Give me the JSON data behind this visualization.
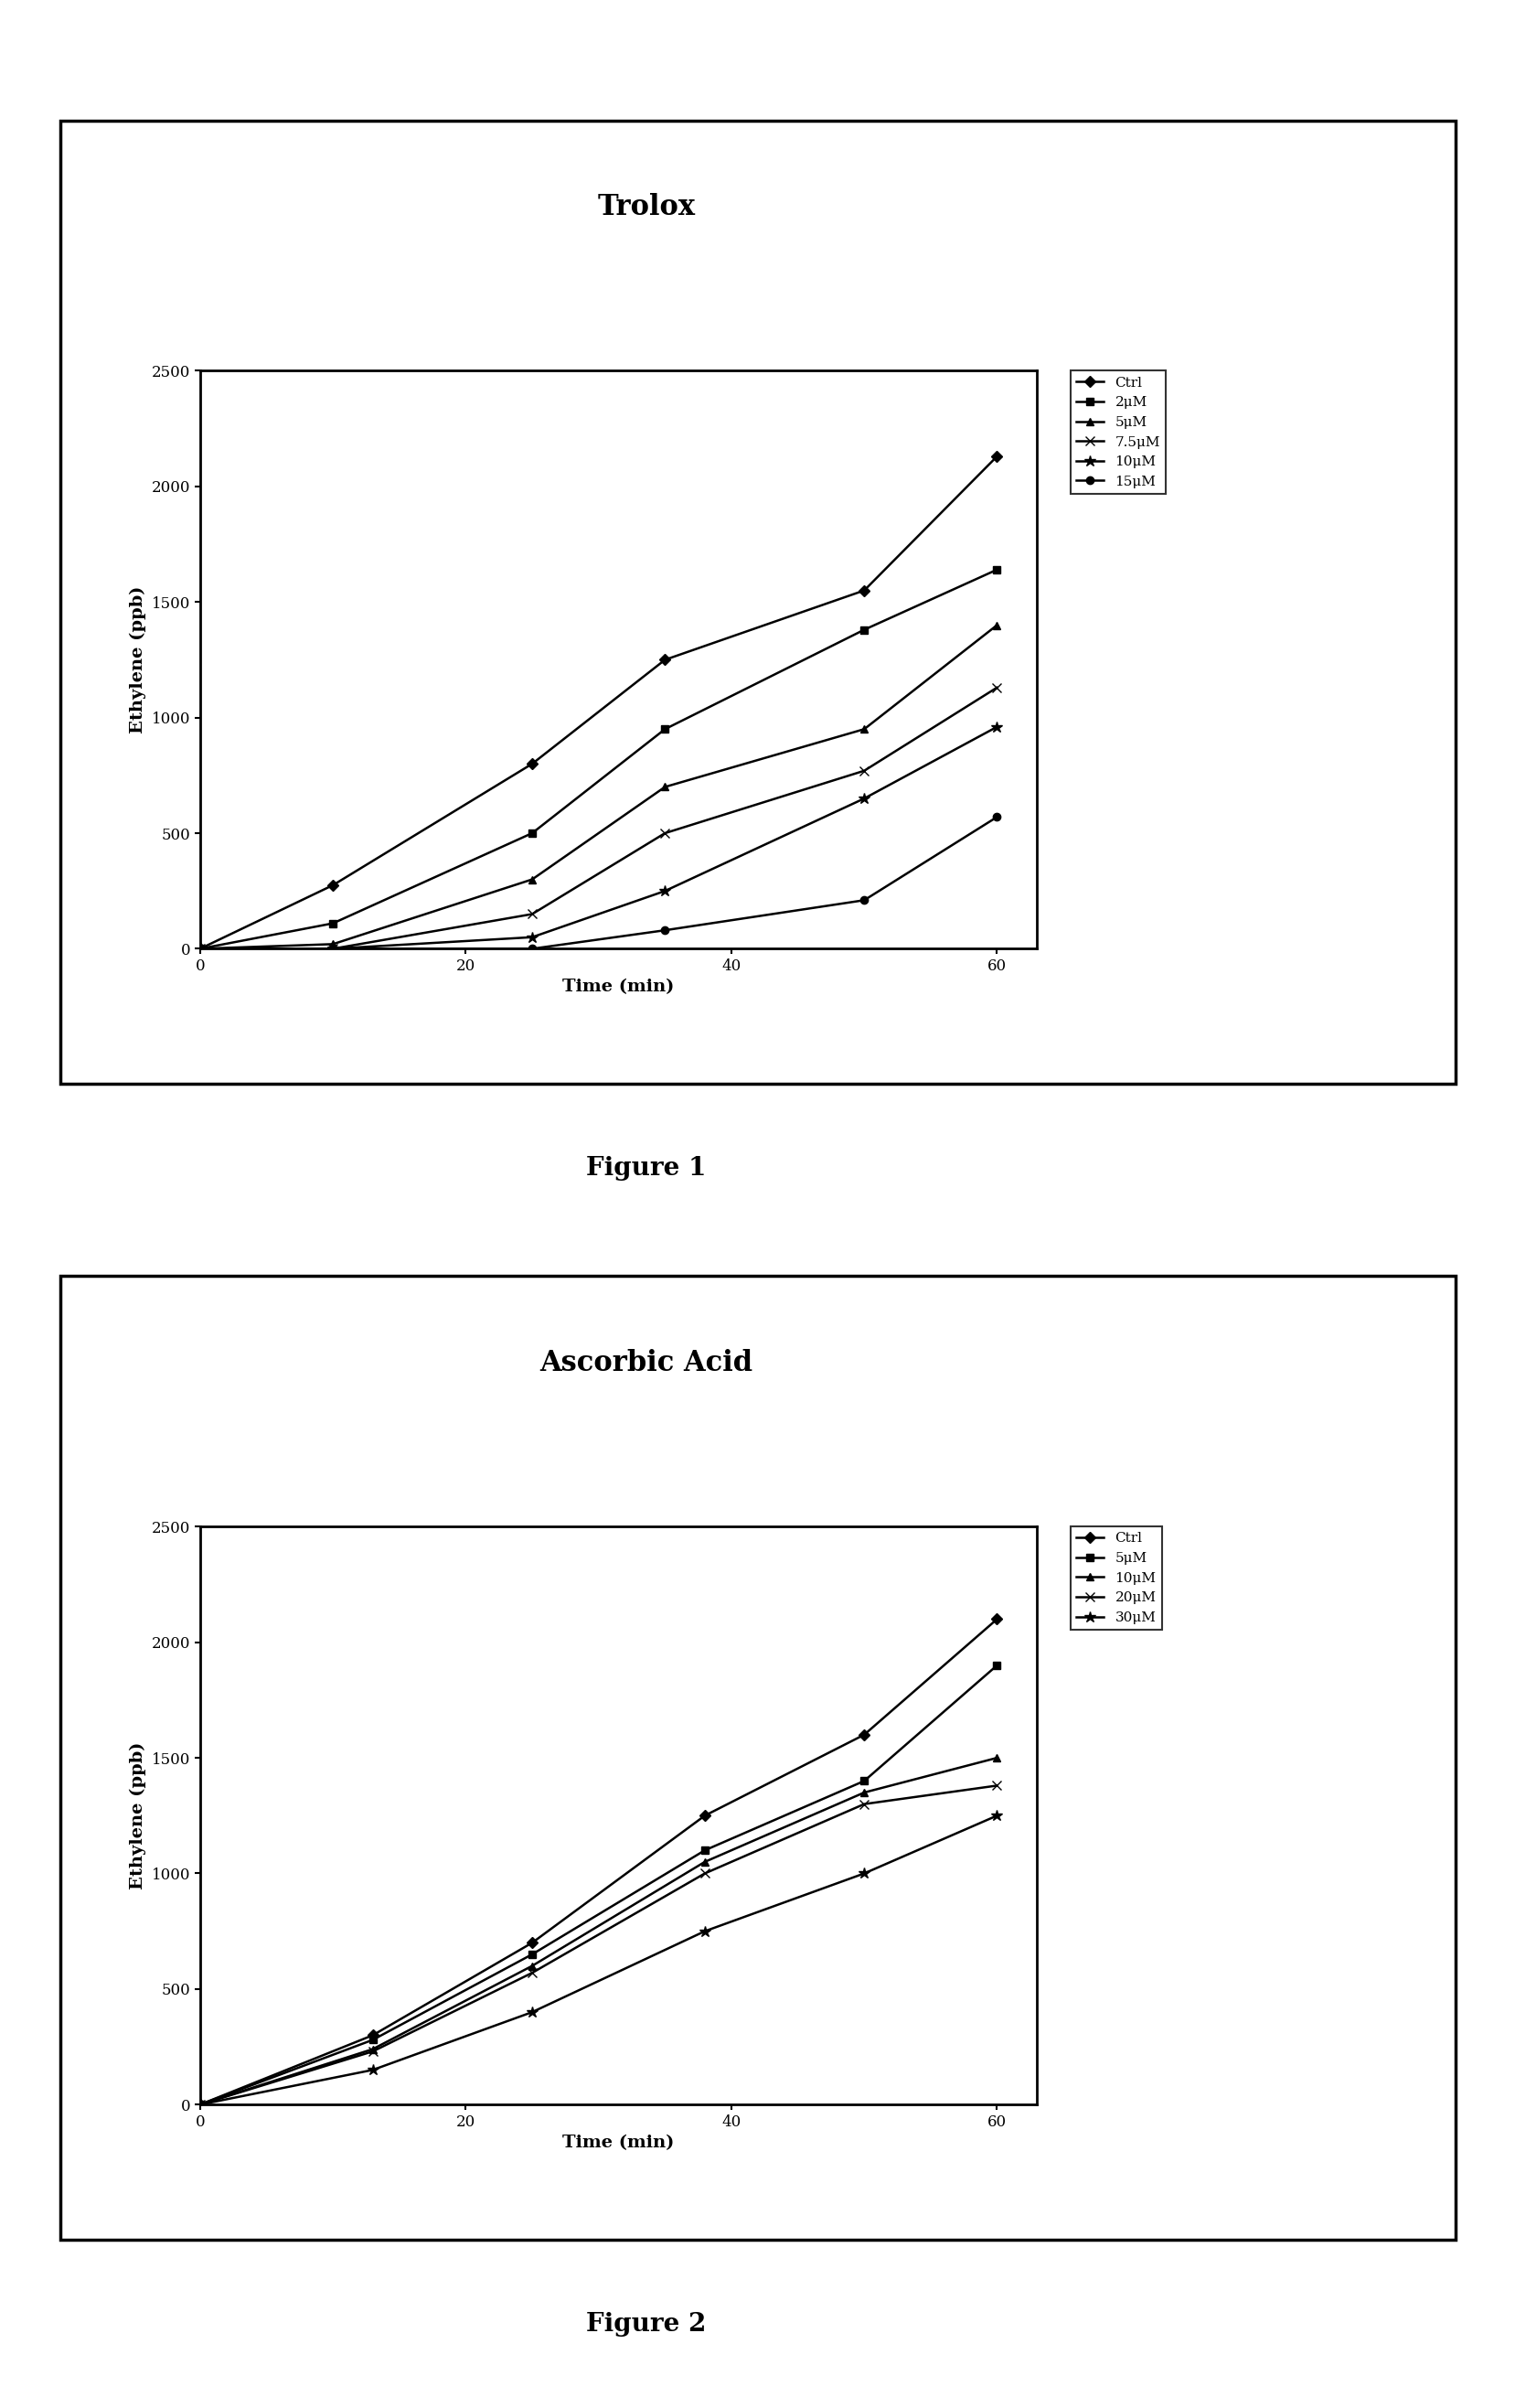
{
  "fig1": {
    "title": "Trolox",
    "xlabel": "Time (min)",
    "ylabel": "Ethylene (ppb)",
    "xlim": [
      0,
      63
    ],
    "ylim": [
      0,
      2500
    ],
    "xticks": [
      0,
      20,
      40,
      60
    ],
    "yticks": [
      0,
      500,
      1000,
      1500,
      2000,
      2500
    ],
    "series": [
      {
        "label": "Ctrl",
        "x": [
          0,
          10,
          25,
          35,
          50,
          60
        ],
        "y": [
          0,
          275,
          800,
          1250,
          1550,
          2130
        ],
        "marker": "D",
        "linestyle": "-",
        "color": "#000000",
        "markersize": 6
      },
      {
        "label": "2μM",
        "x": [
          0,
          10,
          25,
          35,
          50,
          60
        ],
        "y": [
          0,
          110,
          500,
          950,
          1380,
          1640
        ],
        "marker": "s",
        "linestyle": "-",
        "color": "#000000",
        "markersize": 6
      },
      {
        "label": "5μM",
        "x": [
          0,
          10,
          25,
          35,
          50,
          60
        ],
        "y": [
          0,
          20,
          300,
          700,
          950,
          1400
        ],
        "marker": "^",
        "linestyle": "-",
        "color": "#000000",
        "markersize": 6
      },
      {
        "label": "7.5μM",
        "x": [
          0,
          10,
          25,
          35,
          50,
          60
        ],
        "y": [
          0,
          0,
          150,
          500,
          770,
          1130
        ],
        "marker": "x",
        "linestyle": "-",
        "color": "#000000",
        "markersize": 7
      },
      {
        "label": "10μM",
        "x": [
          0,
          10,
          25,
          35,
          50,
          60
        ],
        "y": [
          0,
          0,
          50,
          250,
          650,
          960
        ],
        "marker": "*",
        "linestyle": "-",
        "color": "#000000",
        "markersize": 9
      },
      {
        "label": "15μM",
        "x": [
          0,
          10,
          25,
          35,
          50,
          60
        ],
        "y": [
          0,
          0,
          0,
          80,
          210,
          570
        ],
        "marker": "o",
        "linestyle": "-",
        "color": "#000000",
        "markersize": 6
      }
    ],
    "figure_label": "Figure 1"
  },
  "fig2": {
    "title": "Ascorbic Acid",
    "xlabel": "Time (min)",
    "ylabel": "Ethylene (ppb)",
    "xlim": [
      0,
      63
    ],
    "ylim": [
      0,
      2500
    ],
    "xticks": [
      0,
      20,
      40,
      60
    ],
    "yticks": [
      0,
      500,
      1000,
      1500,
      2000,
      2500
    ],
    "series": [
      {
        "label": "Ctrl",
        "x": [
          0,
          13,
          25,
          38,
          50,
          60
        ],
        "y": [
          0,
          300,
          700,
          1250,
          1600,
          2100
        ],
        "marker": "D",
        "linestyle": "-",
        "color": "#000000",
        "markersize": 6
      },
      {
        "label": "5μM",
        "x": [
          0,
          13,
          25,
          38,
          50,
          60
        ],
        "y": [
          0,
          280,
          650,
          1100,
          1400,
          1900
        ],
        "marker": "s",
        "linestyle": "-",
        "color": "#000000",
        "markersize": 6
      },
      {
        "label": "10μM",
        "x": [
          0,
          13,
          25,
          38,
          50,
          60
        ],
        "y": [
          0,
          240,
          600,
          1050,
          1350,
          1500
        ],
        "marker": "^",
        "linestyle": "-",
        "color": "#000000",
        "markersize": 6
      },
      {
        "label": "20μM",
        "x": [
          0,
          13,
          25,
          38,
          50,
          60
        ],
        "y": [
          0,
          230,
          570,
          1000,
          1300,
          1380
        ],
        "marker": "x",
        "linestyle": "-",
        "color": "#000000",
        "markersize": 7
      },
      {
        "label": "30μM",
        "x": [
          0,
          13,
          25,
          38,
          50,
          60
        ],
        "y": [
          0,
          150,
          400,
          750,
          1000,
          1250
        ],
        "marker": "*",
        "linestyle": "-",
        "color": "#000000",
        "markersize": 9
      }
    ],
    "figure_label": "Figure 2"
  },
  "background_color": "#ffffff",
  "linewidth": 1.8,
  "legend_fontsize": 11,
  "axis_label_fontsize": 14,
  "tick_fontsize": 12,
  "title_fontsize": 22,
  "figure_label_fontsize": 20
}
